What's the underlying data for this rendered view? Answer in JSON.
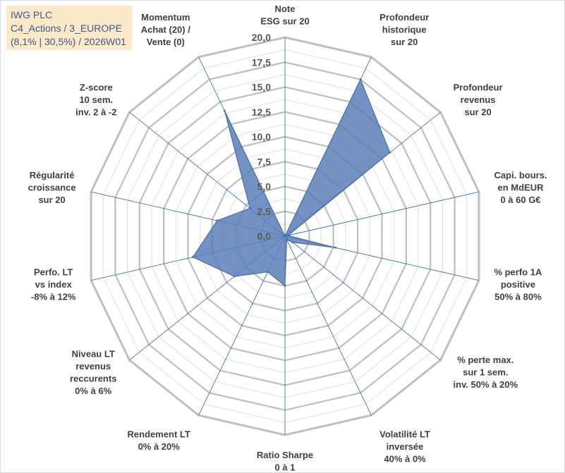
{
  "title_box": {
    "line1": "IWG PLC",
    "line2": "C4_Actions / 3_EUROPE",
    "line3": "(8,1% | 30,5%) / 2026W01"
  },
  "chart_data": {
    "type": "radar",
    "title": "IWG PLC",
    "rmin": 0,
    "rmax": 20,
    "ticks": [
      0,
      2.5,
      5,
      7.5,
      10,
      12.5,
      15,
      17.5,
      20
    ],
    "tick_labels": [
      "0,0",
      "2,5",
      "5,0",
      "7,5",
      "10,0",
      "12,5",
      "15,0",
      "17,5",
      "20,0"
    ],
    "axes": [
      "Note\nESG sur 20",
      "Profondeur\nhistorique\nsur 20",
      "Profondeur\nrevenus\nsur 20",
      "Capi. bours.\nen MdEUR\n0 à 60 G€",
      "% perfo 1A\npositive\n50% à 80%",
      "% perte max.\nsur 1 sem.\ninv. 50% à 20%",
      "Volatilité LT\ninversée\n40% à 0%",
      "Ratio Sharpe\n0 à 1",
      "Rendement LT\n0% à 20%",
      "Niveau LT\nrevenus\nreccurents\n0% à 6%",
      "Perfo. LT\nvs index\n-8% à 12%",
      "Régularité\ncroissance\nsur 20",
      "Z-score\n10 sem.\ninv. 2 à -2",
      "Momentum\nAchat (20) /\nVente (0)"
    ],
    "series": [
      {
        "name": "IWG PLC",
        "values": [
          0,
          17.5,
          13.5,
          0.3,
          5.2,
          1.0,
          0.4,
          5.0,
          4.0,
          6.5,
          9.5,
          7.0,
          4.5,
          14.0
        ]
      }
    ],
    "colors": {
      "fill": "#5b7fb8",
      "line": "#4a6fa5",
      "grid": "#bfbfbf",
      "spoke": "#4472c4"
    }
  }
}
